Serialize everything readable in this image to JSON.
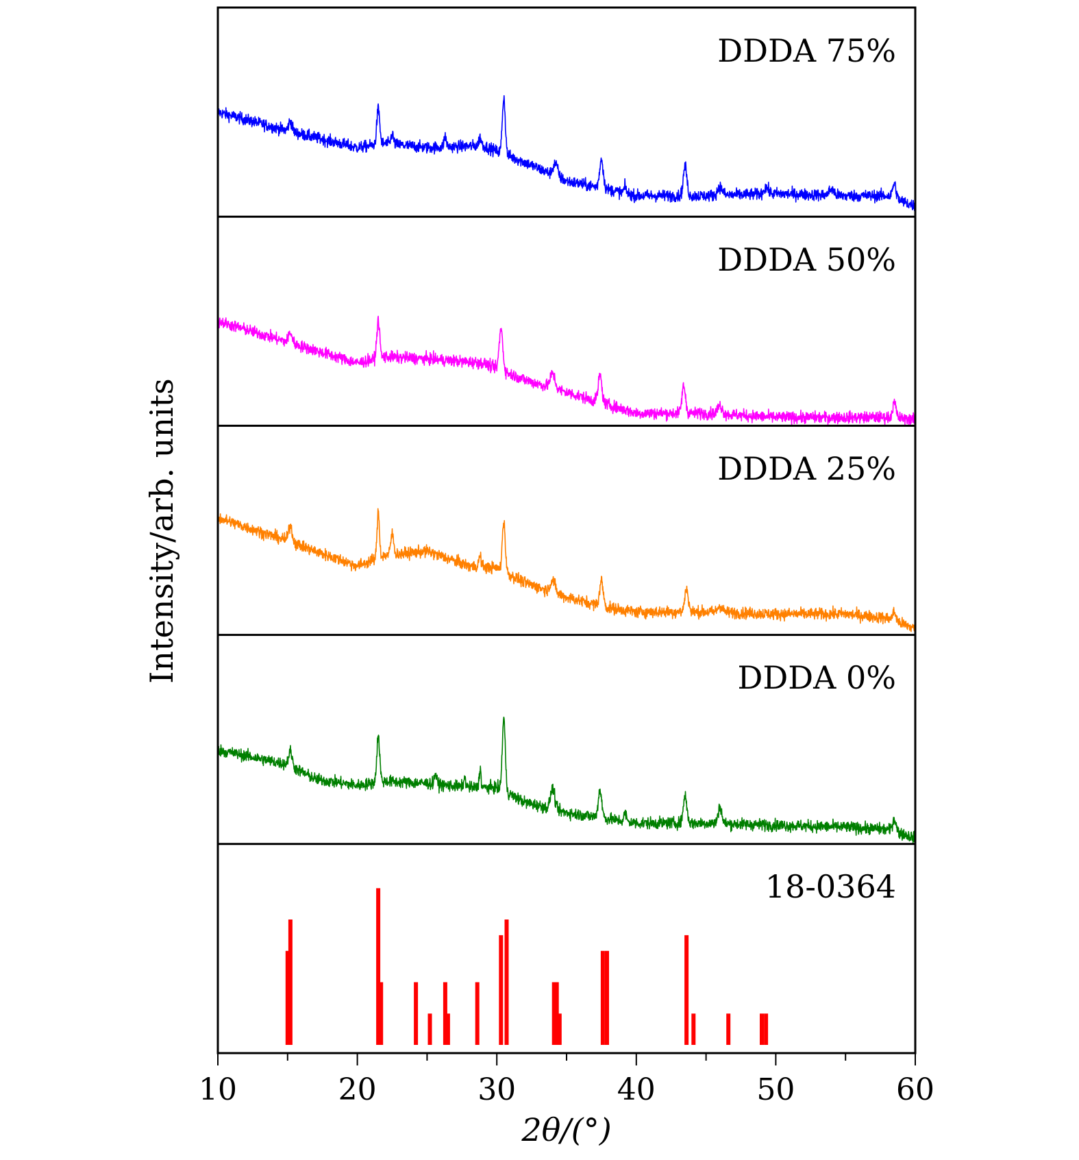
{
  "chart_data": {
    "type": "line",
    "title": "",
    "xlabel": "2θ/(°)",
    "ylabel": "Intensity/arb. units",
    "xlim": [
      10,
      60
    ],
    "xticks": [
      "10",
      "20",
      "30",
      "40",
      "50",
      "60"
    ],
    "x_minor_step": 5,
    "grid": false,
    "panels": [
      {
        "label": "DDDA 75%",
        "color": "#0000ff",
        "baseline": [
          [
            10,
            0.5
          ],
          [
            15,
            0.41
          ],
          [
            20,
            0.33
          ],
          [
            22,
            0.35
          ],
          [
            25,
            0.33
          ],
          [
            29,
            0.34
          ],
          [
            32,
            0.26
          ],
          [
            35,
            0.17
          ],
          [
            38,
            0.13
          ],
          [
            40,
            0.1
          ],
          [
            45,
            0.1
          ],
          [
            50,
            0.11
          ],
          [
            55,
            0.1
          ],
          [
            58,
            0.1
          ],
          [
            60,
            0.05
          ]
        ],
        "peaks": [
          [
            15.2,
            0.05,
            0.3
          ],
          [
            21.5,
            0.17,
            0.25
          ],
          [
            22.5,
            0.05,
            0.2
          ],
          [
            26.3,
            0.05,
            0.2
          ],
          [
            28.8,
            0.04,
            0.2
          ],
          [
            30.5,
            0.27,
            0.25
          ],
          [
            34.2,
            0.06,
            0.4
          ],
          [
            37.5,
            0.14,
            0.3
          ],
          [
            39.2,
            0.03,
            0.2
          ],
          [
            43.5,
            0.14,
            0.3
          ],
          [
            46.0,
            0.04,
            0.4
          ],
          [
            49.3,
            0.03,
            0.4
          ],
          [
            54.0,
            0.03,
            0.4
          ],
          [
            58.5,
            0.07,
            0.3
          ]
        ],
        "noise": 0.025
      },
      {
        "label": "DDDA 50%",
        "color": "#ff00ff",
        "baseline": [
          [
            10,
            0.5
          ],
          [
            15,
            0.4
          ],
          [
            20,
            0.3
          ],
          [
            22,
            0.33
          ],
          [
            25,
            0.32
          ],
          [
            29,
            0.3
          ],
          [
            32,
            0.22
          ],
          [
            35,
            0.16
          ],
          [
            38,
            0.1
          ],
          [
            40,
            0.06
          ],
          [
            45,
            0.06
          ],
          [
            50,
            0.04
          ],
          [
            55,
            0.04
          ],
          [
            58,
            0.04
          ],
          [
            60,
            0.03
          ]
        ],
        "peaks": [
          [
            15.2,
            0.05,
            0.3
          ],
          [
            21.5,
            0.18,
            0.25
          ],
          [
            30.3,
            0.2,
            0.3
          ],
          [
            34.0,
            0.07,
            0.4
          ],
          [
            37.4,
            0.13,
            0.3
          ],
          [
            43.4,
            0.13,
            0.3
          ],
          [
            46.0,
            0.04,
            0.4
          ],
          [
            58.5,
            0.07,
            0.3
          ]
        ],
        "noise": 0.025
      },
      {
        "label": "DDDA 25%",
        "color": "#ff8000",
        "baseline": [
          [
            10,
            0.56
          ],
          [
            15,
            0.45
          ],
          [
            17,
            0.4
          ],
          [
            20,
            0.33
          ],
          [
            22,
            0.38
          ],
          [
            25,
            0.4
          ],
          [
            28,
            0.33
          ],
          [
            30,
            0.32
          ],
          [
            32,
            0.25
          ],
          [
            35,
            0.18
          ],
          [
            38,
            0.13
          ],
          [
            40,
            0.11
          ],
          [
            45,
            0.11
          ],
          [
            50,
            0.1
          ],
          [
            55,
            0.1
          ],
          [
            58,
            0.08
          ],
          [
            60,
            0.03
          ]
        ],
        "peaks": [
          [
            15.2,
            0.08,
            0.3
          ],
          [
            21.5,
            0.22,
            0.2
          ],
          [
            22.5,
            0.1,
            0.25
          ],
          [
            28.8,
            0.05,
            0.2
          ],
          [
            30.5,
            0.24,
            0.25
          ],
          [
            34.0,
            0.06,
            0.4
          ],
          [
            37.5,
            0.12,
            0.3
          ],
          [
            43.6,
            0.11,
            0.3
          ],
          [
            46.0,
            0.03,
            0.4
          ],
          [
            58.5,
            0.04,
            0.3
          ]
        ],
        "noise": 0.025
      },
      {
        "label": "DDDA 0%",
        "color": "#007f00",
        "baseline": [
          [
            10,
            0.45
          ],
          [
            15,
            0.38
          ],
          [
            17,
            0.31
          ],
          [
            20,
            0.28
          ],
          [
            22,
            0.3
          ],
          [
            25,
            0.29
          ],
          [
            28,
            0.27
          ],
          [
            30,
            0.27
          ],
          [
            32,
            0.2
          ],
          [
            35,
            0.15
          ],
          [
            38,
            0.12
          ],
          [
            40,
            0.1
          ],
          [
            45,
            0.1
          ],
          [
            50,
            0.09
          ],
          [
            55,
            0.08
          ],
          [
            58,
            0.07
          ],
          [
            60,
            0.03
          ]
        ],
        "peaks": [
          [
            15.2,
            0.07,
            0.3
          ],
          [
            21.5,
            0.22,
            0.25
          ],
          [
            25.6,
            0.05,
            0.2
          ],
          [
            27.7,
            0.04,
            0.2
          ],
          [
            28.8,
            0.09,
            0.15
          ],
          [
            30.5,
            0.35,
            0.25
          ],
          [
            34.0,
            0.1,
            0.35
          ],
          [
            37.4,
            0.13,
            0.3
          ],
          [
            39.2,
            0.04,
            0.2
          ],
          [
            43.5,
            0.13,
            0.3
          ],
          [
            46.0,
            0.08,
            0.3
          ],
          [
            58.5,
            0.06,
            0.3
          ]
        ],
        "noise": 0.025
      }
    ],
    "reference": {
      "label": "18-0364",
      "color": "#ff0000",
      "ylim": [
        0,
        130
      ],
      "positions": [
        15.0,
        15.2,
        21.5,
        21.7,
        24.2,
        25.2,
        26.3,
        26.5,
        28.6,
        30.3,
        30.7,
        34.1,
        34.3,
        34.5,
        37.6,
        37.9,
        43.6,
        44.1,
        46.6,
        49.0,
        49.3
      ],
      "intensities": [
        60,
        80,
        100,
        40,
        40,
        20,
        40,
        20,
        40,
        70,
        80,
        40,
        40,
        20,
        60,
        60,
        70,
        20,
        20,
        20,
        20
      ]
    }
  }
}
